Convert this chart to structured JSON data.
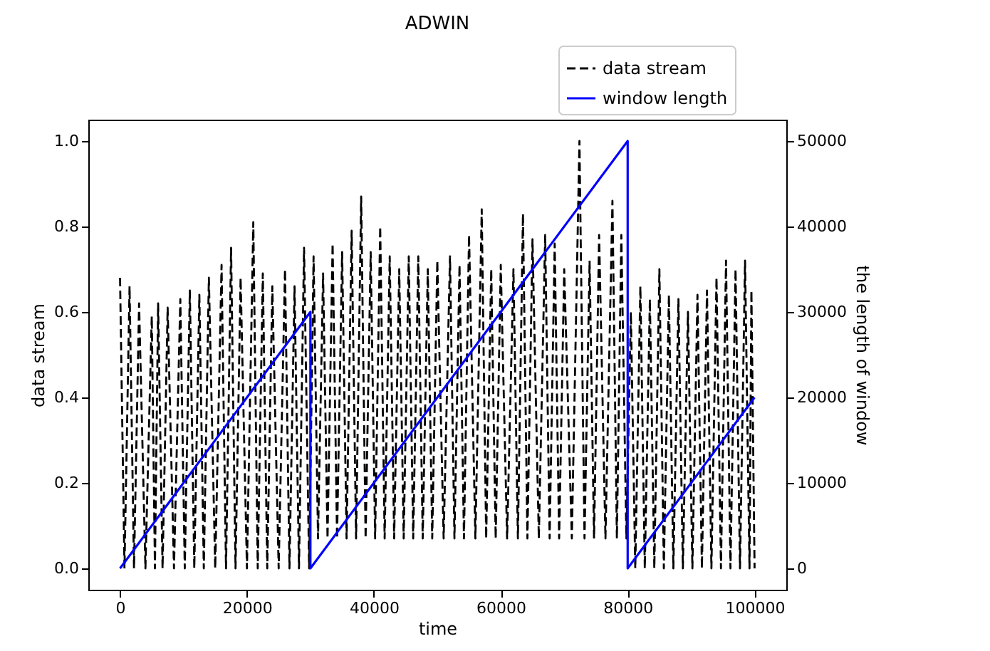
{
  "chart_data": {
    "type": "line",
    "title": "ADWIN",
    "xlabel": "time",
    "ylabel": "data stream",
    "y2label": "the length of window",
    "xlim": [
      -5000,
      105000
    ],
    "xticks": [
      0,
      20000,
      40000,
      60000,
      80000,
      100000
    ],
    "ylim": [
      -0.05,
      1.05
    ],
    "yticks": [
      {
        "value": 0,
        "label": "0.0"
      },
      {
        "value": 0.2,
        "label": "0.2"
      },
      {
        "value": 0.4,
        "label": "0.4"
      },
      {
        "value": 0.6,
        "label": "0.6"
      },
      {
        "value": 0.8,
        "label": "0.8"
      },
      {
        "value": 1,
        "label": "1.0"
      }
    ],
    "y2lim": [
      -2500,
      52500
    ],
    "y2ticks": [
      0,
      10000,
      20000,
      30000,
      40000,
      50000
    ],
    "grid": false,
    "legend": "top right",
    "marker": "none",
    "series": [
      {
        "name": "data stream",
        "color": "#000000",
        "line_style": "dashed",
        "x": [
          0,
          700,
          1500,
          2200,
          3000,
          4000,
          5000,
          5500,
          6000,
          6700,
          7500,
          8500,
          9500,
          10200,
          11000,
          11700,
          12500,
          13200,
          14000,
          15000,
          16000,
          16700,
          17500,
          18200,
          19000,
          20000,
          21000,
          21700,
          22500,
          23200,
          24000,
          25000,
          26000,
          26700,
          27500,
          28200,
          29000,
          29800,
          30500,
          31200,
          32000,
          32700,
          33500,
          34200,
          35000,
          35700,
          36500,
          37200,
          38000,
          38700,
          39500,
          40200,
          41000,
          41700,
          42500,
          43200,
          44000,
          44700,
          45500,
          46200,
          47000,
          47700,
          48500,
          49200,
          50000,
          51000,
          52000,
          52700,
          53500,
          54200,
          55000,
          56000,
          57000,
          57700,
          58500,
          59200,
          60000,
          61000,
          62000,
          62700,
          63500,
          64200,
          65000,
          66000,
          67000,
          67700,
          68500,
          69200,
          70000,
          71200,
          72400,
          73200,
          74000,
          74700,
          75500,
          76500,
          77600,
          78300,
          79000,
          79800,
          80500,
          81200,
          82000,
          82700,
          83500,
          84200,
          85000,
          85700,
          86500,
          87200,
          88000,
          88700,
          89500,
          90200,
          91000,
          91700,
          92500,
          93200,
          94000,
          94700,
          95500,
          96200,
          97000,
          97700,
          98500,
          99200,
          99500,
          100000
        ],
        "values": [
          0.68,
          0,
          0.66,
          0,
          0.62,
          0,
          0.59,
          0,
          0.62,
          0,
          0.61,
          0,
          0.63,
          0,
          0.65,
          0,
          0.64,
          0,
          0.68,
          0,
          0.71,
          0,
          0.75,
          0,
          0.68,
          0,
          0.81,
          0,
          0.69,
          0,
          0.66,
          0,
          0.7,
          0,
          0.66,
          0,
          0.75,
          0,
          0.73,
          0.07,
          0.69,
          0.07,
          0.76,
          0.07,
          0.74,
          0.07,
          0.79,
          0.07,
          0.87,
          0.07,
          0.74,
          0.07,
          0.8,
          0.07,
          0.73,
          0.07,
          0.7,
          0.07,
          0.73,
          0.07,
          0.73,
          0.07,
          0.7,
          0.07,
          0.72,
          0.07,
          0.73,
          0.07,
          0.71,
          0.07,
          0.78,
          0.07,
          0.84,
          0.07,
          0.7,
          0.07,
          0.71,
          0.07,
          0.7,
          0.07,
          0.83,
          0.07,
          0.77,
          0.07,
          0.78,
          0.07,
          0.76,
          0.07,
          0.7,
          0.07,
          1.0,
          0.07,
          0.72,
          0.07,
          0.78,
          0.07,
          0.86,
          0.07,
          0.78,
          0.07,
          0.6,
          0,
          0.66,
          0,
          0.63,
          0,
          0.7,
          0,
          0.64,
          0,
          0.63,
          0,
          0.6,
          0,
          0.64,
          0,
          0.65,
          0,
          0.68,
          0,
          0.72,
          0,
          0.7,
          0,
          0.72,
          0,
          0.65,
          0
        ]
      },
      {
        "name": "window length",
        "color": "#0000ff",
        "line_style": "solid",
        "axis": "y2",
        "x": [
          0,
          30000,
          30000,
          80000,
          80000,
          100000
        ],
        "values": [
          0,
          30000,
          0,
          50000,
          0,
          20000
        ]
      }
    ]
  }
}
